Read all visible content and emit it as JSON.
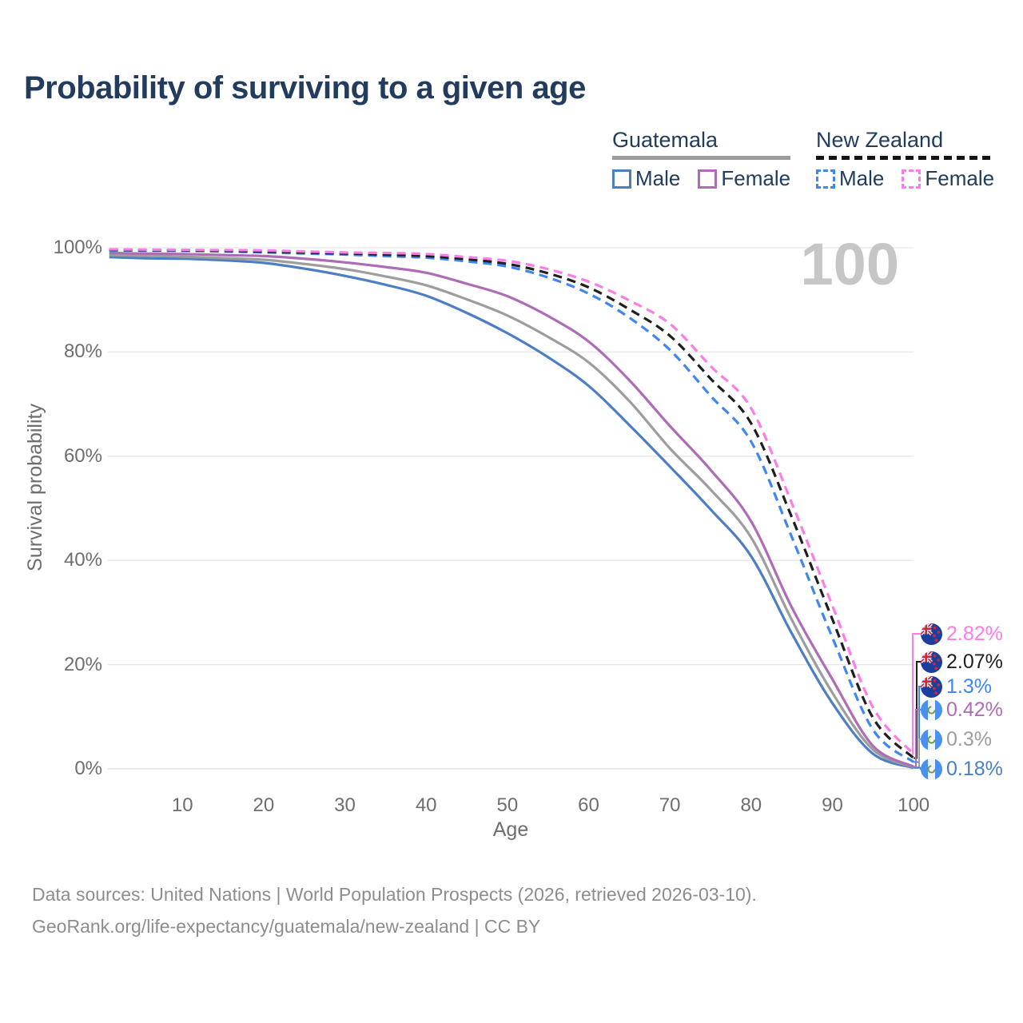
{
  "title": "Probability of surviving to a given age",
  "watermark": "100",
  "legend": {
    "groups": [
      {
        "name": "Guatemala",
        "line_style": "solid",
        "underline_color": "#9c9c9c",
        "items": [
          {
            "label": "Male",
            "color": "#4d7ec3"
          },
          {
            "label": "Female",
            "color": "#ad6cb5"
          }
        ]
      },
      {
        "name": "New Zealand",
        "line_style": "dashed",
        "underline_color": "#151515",
        "items": [
          {
            "label": "Male",
            "color": "#3f86f2"
          },
          {
            "label": "Female",
            "color": "#fc7ce8"
          }
        ]
      }
    ]
  },
  "chart_data": {
    "type": "line",
    "title": "Probability of surviving to a given age",
    "xlabel": "Age",
    "ylabel": "Survival probability",
    "grid": "horizontal",
    "legend_position": "top-right",
    "xlim": [
      1,
      100
    ],
    "ylim": [
      0,
      100
    ],
    "x_ticks": [
      10,
      20,
      30,
      40,
      50,
      60,
      70,
      80,
      90,
      100
    ],
    "y_tick_values": [
      100,
      80,
      60,
      40,
      20,
      0
    ],
    "y_tick_labels": [
      "100%",
      "80%",
      "60%",
      "40%",
      "20%",
      "0%"
    ],
    "x": [
      1,
      5,
      10,
      15,
      20,
      25,
      30,
      35,
      40,
      45,
      50,
      55,
      60,
      65,
      70,
      75,
      80,
      85,
      90,
      95,
      100
    ],
    "series": [
      {
        "id": "guatemala-male",
        "name": "Guatemala Male",
        "country": "Guatemala",
        "sex": "Male",
        "color": "#4d7ec3",
        "dash": "solid",
        "flag_icon": "guatemala-flag-icon",
        "end_label": "0.18%",
        "values": [
          98.2,
          98.0,
          97.9,
          97.6,
          97.1,
          96.0,
          94.6,
          92.9,
          90.8,
          87.5,
          83.6,
          79.0,
          73.5,
          66.0,
          58.0,
          49.8,
          40.8,
          26.0,
          12.6,
          2.9,
          0.18
        ]
      },
      {
        "id": "guatemala-all",
        "name": "Guatemala Both sexes",
        "country": "Guatemala",
        "sex": "Both",
        "color": "#9d9d9d",
        "dash": "solid",
        "flag_icon": "guatemala-flag-icon",
        "end_label": "0.3%",
        "values": [
          98.6,
          98.5,
          98.3,
          98.0,
          97.7,
          96.9,
          95.9,
          94.5,
          92.8,
          90.1,
          87.0,
          82.9,
          78.0,
          70.6,
          61.5,
          53.6,
          44.4,
          28.6,
          14.6,
          3.7,
          0.3
        ]
      },
      {
        "id": "guatemala-female",
        "name": "Guatemala Female",
        "country": "Guatemala",
        "sex": "Female",
        "color": "#ad6cb5",
        "dash": "solid",
        "flag_icon": "guatemala-flag-icon",
        "end_label": "0.42%",
        "values": [
          99.0,
          98.9,
          98.8,
          98.6,
          98.4,
          97.9,
          97.2,
          96.3,
          95.2,
          93.1,
          90.7,
          86.9,
          82.0,
          74.6,
          65.8,
          57.4,
          47.5,
          31.0,
          17.2,
          4.4,
          0.42
        ]
      },
      {
        "id": "new-zealand-male",
        "name": "New Zealand Male",
        "country": "New Zealand",
        "sex": "Male",
        "color": "#3f86f2",
        "dash": "dashed",
        "flag_icon": "new-zealand-flag-icon",
        "end_label": "1.3%",
        "values": [
          99.5,
          99.45,
          99.4,
          99.3,
          99.1,
          98.9,
          98.7,
          98.4,
          98.1,
          97.4,
          96.4,
          94.3,
          91.2,
          86.6,
          80.4,
          71.6,
          62.8,
          44.5,
          25.2,
          7.5,
          1.3
        ]
      },
      {
        "id": "new-zealand-all",
        "name": "New Zealand Both sexes",
        "country": "New Zealand",
        "sex": "Both",
        "color": "#1f1f1f",
        "dash": "dashed",
        "flag_icon": "new-zealand-flag-icon",
        "end_label": "2.07%",
        "values": [
          99.6,
          99.55,
          99.5,
          99.4,
          99.3,
          99.1,
          98.9,
          98.7,
          98.4,
          97.8,
          96.9,
          95.1,
          92.4,
          88.2,
          83.1,
          74.9,
          66.3,
          48.3,
          28.7,
          9.8,
          2.07
        ]
      },
      {
        "id": "new-zealand-female",
        "name": "New Zealand Female",
        "country": "New Zealand",
        "sex": "Female",
        "color": "#fc7ce8",
        "dash": "dashed",
        "flag_icon": "new-zealand-flag-icon",
        "end_label": "2.82%",
        "values": [
          99.7,
          99.65,
          99.6,
          99.55,
          99.5,
          99.3,
          99.1,
          99.0,
          98.8,
          98.2,
          97.5,
          95.9,
          93.5,
          89.9,
          85.4,
          77.3,
          69.2,
          51.0,
          31.3,
          11.8,
          2.82
        ]
      }
    ]
  },
  "footer": {
    "line1": "Data sources: United Nations | World Population Prospects (2026, retrieved 2026-03-10).",
    "line2": "GeoRank.org/life-expectancy/guatemala/new-zealand | CC BY"
  }
}
